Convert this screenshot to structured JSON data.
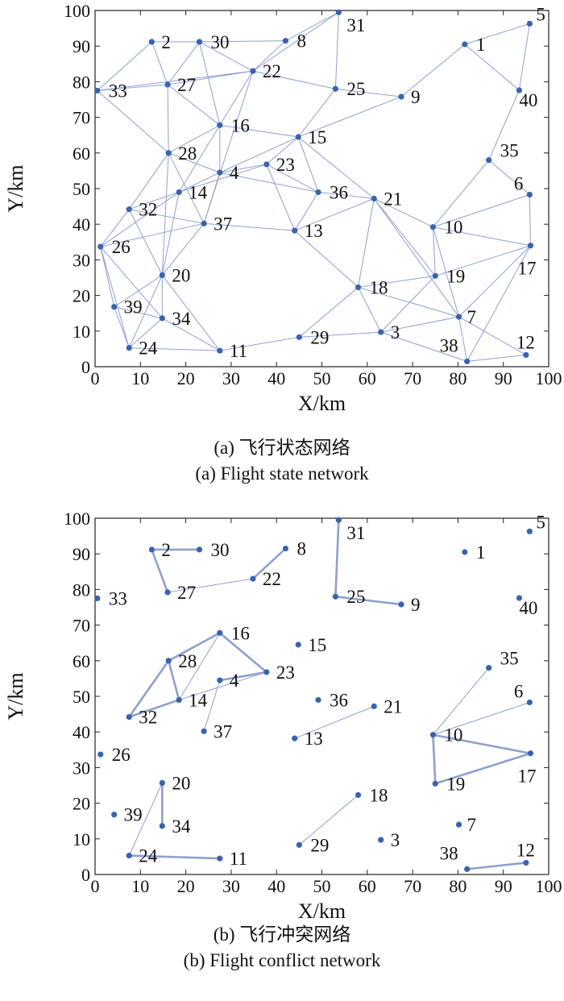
{
  "colors": {
    "edge": "#8f9fce",
    "node": "#3a63ad",
    "axis": "#222222"
  },
  "axes": {
    "xlabel": "X/km",
    "ylabel": "Y/km",
    "xlim": [
      0,
      100
    ],
    "ylim": [
      0,
      100
    ],
    "xticks": [
      "0",
      "10",
      "20",
      "30",
      "40",
      "50",
      "60",
      "70",
      "80",
      "90",
      "100"
    ],
    "yticks": [
      "0",
      "10",
      "20",
      "30",
      "40",
      "50",
      "60",
      "70",
      "80",
      "90",
      "100"
    ]
  },
  "chart_data": [
    {
      "type": "scatter",
      "title": "",
      "caption_cn": "(a) 飞行状态网络",
      "caption_en": "(a) Flight state network",
      "xlabel": "X/km",
      "ylabel": "Y/km",
      "xlim": [
        0,
        100
      ],
      "ylim": [
        0,
        100
      ],
      "grid": false,
      "nodes": [
        {
          "id": "1",
          "x": 81.5,
          "y": 90.5
        },
        {
          "id": "2",
          "x": 12.5,
          "y": 91.2
        },
        {
          "id": "3",
          "x": 63.0,
          "y": 9.7
        },
        {
          "id": "4",
          "x": 27.5,
          "y": 54.5
        },
        {
          "id": "5",
          "x": 95.8,
          "y": 96.3
        },
        {
          "id": "6",
          "x": 95.8,
          "y": 48.3
        },
        {
          "id": "7",
          "x": 80.2,
          "y": 14.0
        },
        {
          "id": "8",
          "x": 42.0,
          "y": 91.5
        },
        {
          "id": "9",
          "x": 67.5,
          "y": 75.8
        },
        {
          "id": "10",
          "x": 74.5,
          "y": 39.2
        },
        {
          "id": "11",
          "x": 27.5,
          "y": 4.5
        },
        {
          "id": "12",
          "x": 95.0,
          "y": 3.3
        },
        {
          "id": "13",
          "x": 44.0,
          "y": 38.2
        },
        {
          "id": "14",
          "x": 18.5,
          "y": 49.0
        },
        {
          "id": "15",
          "x": 44.8,
          "y": 64.5
        },
        {
          "id": "16",
          "x": 27.5,
          "y": 67.8
        },
        {
          "id": "17",
          "x": 96.0,
          "y": 34.0
        },
        {
          "id": "18",
          "x": 58.0,
          "y": 22.3
        },
        {
          "id": "19",
          "x": 75.0,
          "y": 25.5
        },
        {
          "id": "20",
          "x": 14.8,
          "y": 25.7
        },
        {
          "id": "21",
          "x": 61.5,
          "y": 47.2
        },
        {
          "id": "22",
          "x": 34.8,
          "y": 83.0
        },
        {
          "id": "23",
          "x": 37.8,
          "y": 56.8
        },
        {
          "id": "24",
          "x": 7.5,
          "y": 5.3
        },
        {
          "id": "25",
          "x": 53.0,
          "y": 78.0
        },
        {
          "id": "26",
          "x": 1.2,
          "y": 33.7
        },
        {
          "id": "27",
          "x": 16.0,
          "y": 79.2
        },
        {
          "id": "28",
          "x": 16.2,
          "y": 60.0
        },
        {
          "id": "29",
          "x": 45.0,
          "y": 8.3
        },
        {
          "id": "30",
          "x": 23.0,
          "y": 91.2
        },
        {
          "id": "31",
          "x": 53.7,
          "y": 99.5
        },
        {
          "id": "32",
          "x": 7.5,
          "y": 44.2
        },
        {
          "id": "33",
          "x": 0.5,
          "y": 77.5
        },
        {
          "id": "34",
          "x": 14.8,
          "y": 13.6
        },
        {
          "id": "35",
          "x": 86.8,
          "y": 58.0
        },
        {
          "id": "36",
          "x": 49.2,
          "y": 49.0
        },
        {
          "id": "37",
          "x": 24.0,
          "y": 40.2
        },
        {
          "id": "38",
          "x": 82.0,
          "y": 1.5
        },
        {
          "id": "39",
          "x": 4.2,
          "y": 16.8
        },
        {
          "id": "40",
          "x": 93.5,
          "y": 77.6
        }
      ],
      "edges": [
        [
          "33",
          "2"
        ],
        [
          "33",
          "27"
        ],
        [
          "33",
          "28"
        ],
        [
          "33",
          "22"
        ],
        [
          "2",
          "30"
        ],
        [
          "2",
          "27"
        ],
        [
          "30",
          "8"
        ],
        [
          "30",
          "27"
        ],
        [
          "30",
          "16"
        ],
        [
          "30",
          "22"
        ],
        [
          "8",
          "31"
        ],
        [
          "8",
          "22"
        ],
        [
          "31",
          "22"
        ],
        [
          "31",
          "25"
        ],
        [
          "22",
          "27"
        ],
        [
          "22",
          "25"
        ],
        [
          "22",
          "16"
        ],
        [
          "22",
          "37"
        ],
        [
          "27",
          "16"
        ],
        [
          "27",
          "28"
        ],
        [
          "25",
          "9"
        ],
        [
          "25",
          "15"
        ],
        [
          "16",
          "15"
        ],
        [
          "16",
          "4"
        ],
        [
          "16",
          "28"
        ],
        [
          "16",
          "14"
        ],
        [
          "15",
          "9"
        ],
        [
          "15",
          "4"
        ],
        [
          "15",
          "23"
        ],
        [
          "15",
          "36"
        ],
        [
          "15",
          "21"
        ],
        [
          "28",
          "4"
        ],
        [
          "28",
          "37"
        ],
        [
          "28",
          "32"
        ],
        [
          "28",
          "20"
        ],
        [
          "4",
          "23"
        ],
        [
          "4",
          "36"
        ],
        [
          "4",
          "37"
        ],
        [
          "4",
          "14"
        ],
        [
          "23",
          "14"
        ],
        [
          "23",
          "13"
        ],
        [
          "23",
          "36"
        ],
        [
          "14",
          "32"
        ],
        [
          "14",
          "26"
        ],
        [
          "14",
          "20"
        ],
        [
          "32",
          "37"
        ],
        [
          "32",
          "26"
        ],
        [
          "32",
          "20"
        ],
        [
          "37",
          "26"
        ],
        [
          "37",
          "13"
        ],
        [
          "37",
          "20"
        ],
        [
          "36",
          "13"
        ],
        [
          "36",
          "21"
        ],
        [
          "13",
          "21"
        ],
        [
          "13",
          "18"
        ],
        [
          "21",
          "18"
        ],
        [
          "21",
          "10"
        ],
        [
          "21",
          "7"
        ],
        [
          "21",
          "19"
        ],
        [
          "9",
          "1"
        ],
        [
          "1",
          "5"
        ],
        [
          "1",
          "40"
        ],
        [
          "5",
          "40"
        ],
        [
          "40",
          "35"
        ],
        [
          "35",
          "6"
        ],
        [
          "35",
          "10"
        ],
        [
          "6",
          "17"
        ],
        [
          "6",
          "10"
        ],
        [
          "10",
          "17"
        ],
        [
          "10",
          "19"
        ],
        [
          "10",
          "7"
        ],
        [
          "17",
          "19"
        ],
        [
          "17",
          "7"
        ],
        [
          "17",
          "38"
        ],
        [
          "19",
          "18"
        ],
        [
          "19",
          "3"
        ],
        [
          "18",
          "3"
        ],
        [
          "18",
          "29"
        ],
        [
          "18",
          "7"
        ],
        [
          "7",
          "3"
        ],
        [
          "7",
          "38"
        ],
        [
          "7",
          "12"
        ],
        [
          "3",
          "38"
        ],
        [
          "29",
          "3"
        ],
        [
          "29",
          "11"
        ],
        [
          "11",
          "24"
        ],
        [
          "11",
          "34"
        ],
        [
          "11",
          "20"
        ],
        [
          "20",
          "34"
        ],
        [
          "20",
          "24"
        ],
        [
          "20",
          "39"
        ],
        [
          "26",
          "39"
        ],
        [
          "26",
          "24"
        ],
        [
          "26",
          "34"
        ],
        [
          "39",
          "24"
        ],
        [
          "39",
          "34"
        ],
        [
          "24",
          "34"
        ],
        [
          "38",
          "12"
        ]
      ]
    },
    {
      "type": "scatter",
      "title": "",
      "caption_cn": "(b) 飞行冲突网络",
      "caption_en": "(b) Flight conflict network",
      "xlabel": "X/km",
      "ylabel": "Y/km",
      "xlim": [
        0,
        100
      ],
      "ylim": [
        0,
        100
      ],
      "grid": false,
      "edges_thick": [
        [
          "2",
          "30"
        ],
        [
          "2",
          "27"
        ],
        [
          "22",
          "8"
        ],
        [
          "31",
          "25"
        ],
        [
          "25",
          "9"
        ],
        [
          "28",
          "16"
        ],
        [
          "16",
          "23"
        ],
        [
          "28",
          "14"
        ],
        [
          "14",
          "32"
        ],
        [
          "32",
          "28"
        ],
        [
          "4",
          "23"
        ],
        [
          "20",
          "34"
        ],
        [
          "24",
          "11"
        ],
        [
          "10",
          "19"
        ],
        [
          "10",
          "17"
        ],
        [
          "19",
          "17"
        ],
        [
          "38",
          "12"
        ]
      ],
      "edges_thin": [
        [
          "27",
          "22"
        ],
        [
          "16",
          "14"
        ],
        [
          "14",
          "23"
        ],
        [
          "37",
          "4"
        ],
        [
          "13",
          "21"
        ],
        [
          "29",
          "18"
        ],
        [
          "10",
          "35"
        ],
        [
          "10",
          "6"
        ],
        [
          "20",
          "24"
        ]
      ]
    }
  ]
}
